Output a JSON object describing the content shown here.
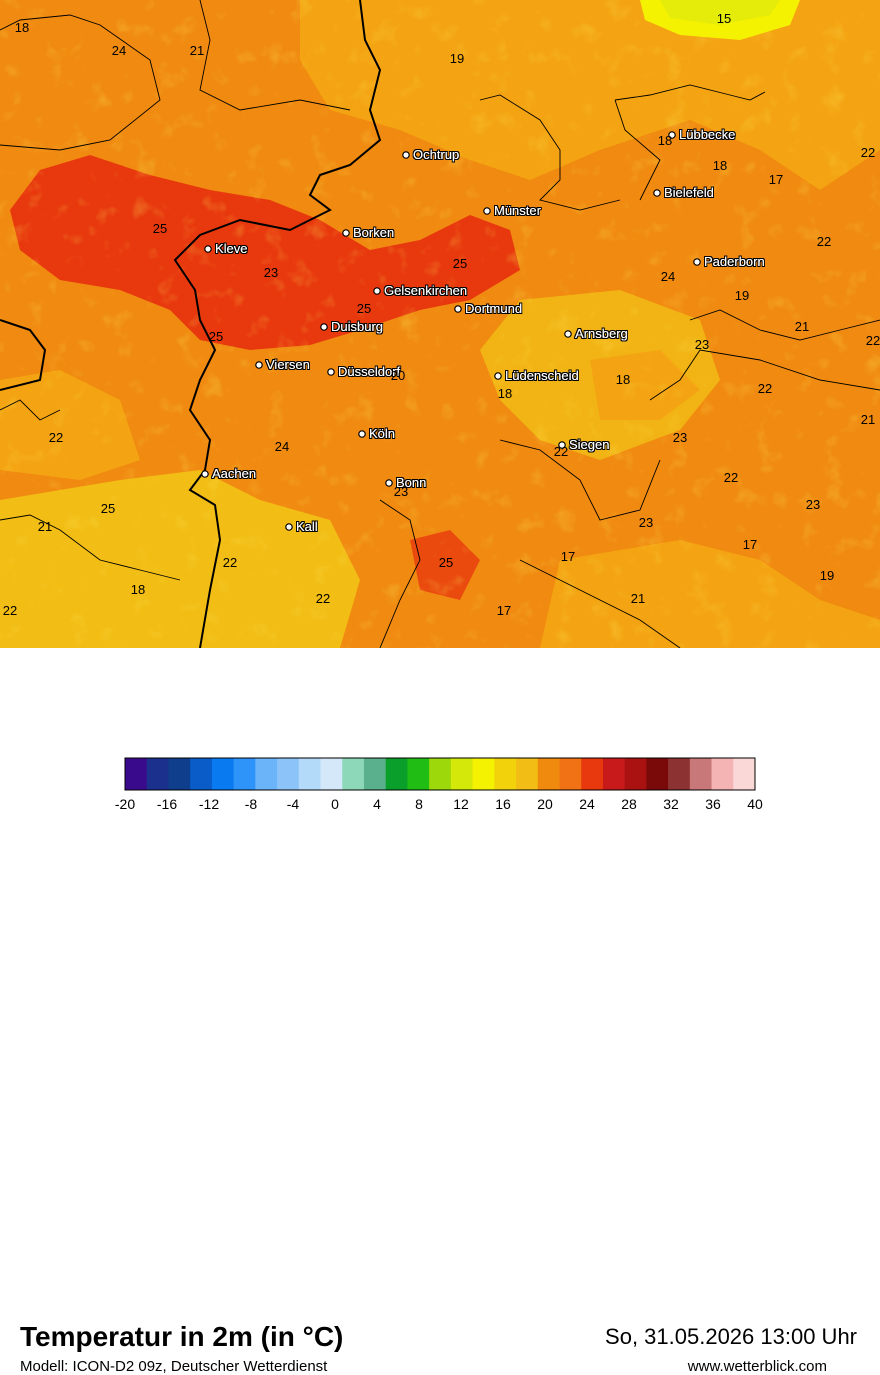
{
  "title": "Temperatur in 2m (in °C)",
  "subtitle": "Modell: ICON-D2 09z, Deutscher Wetterdienst",
  "datetime": "So, 31.05.2026 13:00 Uhr",
  "website": "www.wetterblick.com",
  "colors": {
    "warm_orange": "#F07A10",
    "light_orange": "#F4A412",
    "yellow_orange": "#F2BD14",
    "hot_red": "#E8390E",
    "yellow": "#F4F200"
  },
  "cities": [
    {
      "name": "Lübbecke"
    },
    {
      "name": "Ochtrup"
    },
    {
      "name": "Bielefeld"
    },
    {
      "name": "Münster"
    },
    {
      "name": "Borken"
    },
    {
      "name": "Kleve"
    },
    {
      "name": "Paderborn"
    },
    {
      "name": "Gelsenkirchen"
    },
    {
      "name": "Dortmund"
    },
    {
      "name": "Duisburg"
    },
    {
      "name": "Arnsberg"
    },
    {
      "name": "Viersen"
    },
    {
      "name": "Düsseldorf"
    },
    {
      "name": "Lüdenscheid"
    },
    {
      "name": "Köln"
    },
    {
      "name": "Siegen"
    },
    {
      "name": "Aachen"
    },
    {
      "name": "Bonn"
    },
    {
      "name": "Kall"
    }
  ],
  "temperature_labels": [
    "18",
    "24",
    "21",
    "19",
    "15",
    "18",
    "18",
    "17",
    "22",
    "22",
    "25",
    "23",
    "25",
    "24",
    "19",
    "25",
    "25",
    "21",
    "20",
    "23",
    "18",
    "18",
    "22",
    "22",
    "24",
    "21",
    "23",
    "22",
    "22",
    "23",
    "23",
    "22",
    "21",
    "23",
    "25",
    "17",
    "22",
    "17",
    "19",
    "25",
    "18",
    "22",
    "21",
    "17",
    "22"
  ],
  "colorbar": {
    "ticks": [
      "-20",
      "-16",
      "-12",
      "-8",
      "-4",
      "0",
      "4",
      "8",
      "12",
      "16",
      "20",
      "24",
      "28",
      "32",
      "36",
      "40"
    ],
    "colors": [
      "#3A0A8C",
      "#1B2F8C",
      "#0E3E8C",
      "#0A5CC8",
      "#0A7AF0",
      "#2E94FA",
      "#6CB4FA",
      "#8CC4FA",
      "#B4DAFA",
      "#D4E8FA",
      "#8CD8B8",
      "#5AB08C",
      "#0A9E2A",
      "#20BE14",
      "#9CD80A",
      "#D4E80A",
      "#F4F200",
      "#F2D20A",
      "#F2BD14",
      "#F08A0E",
      "#F07214",
      "#E8390E",
      "#C81A1A",
      "#AA1212",
      "#7A0A0A",
      "#8C3232",
      "#C87878",
      "#F4B4B4",
      "#FAD8D8"
    ]
  }
}
